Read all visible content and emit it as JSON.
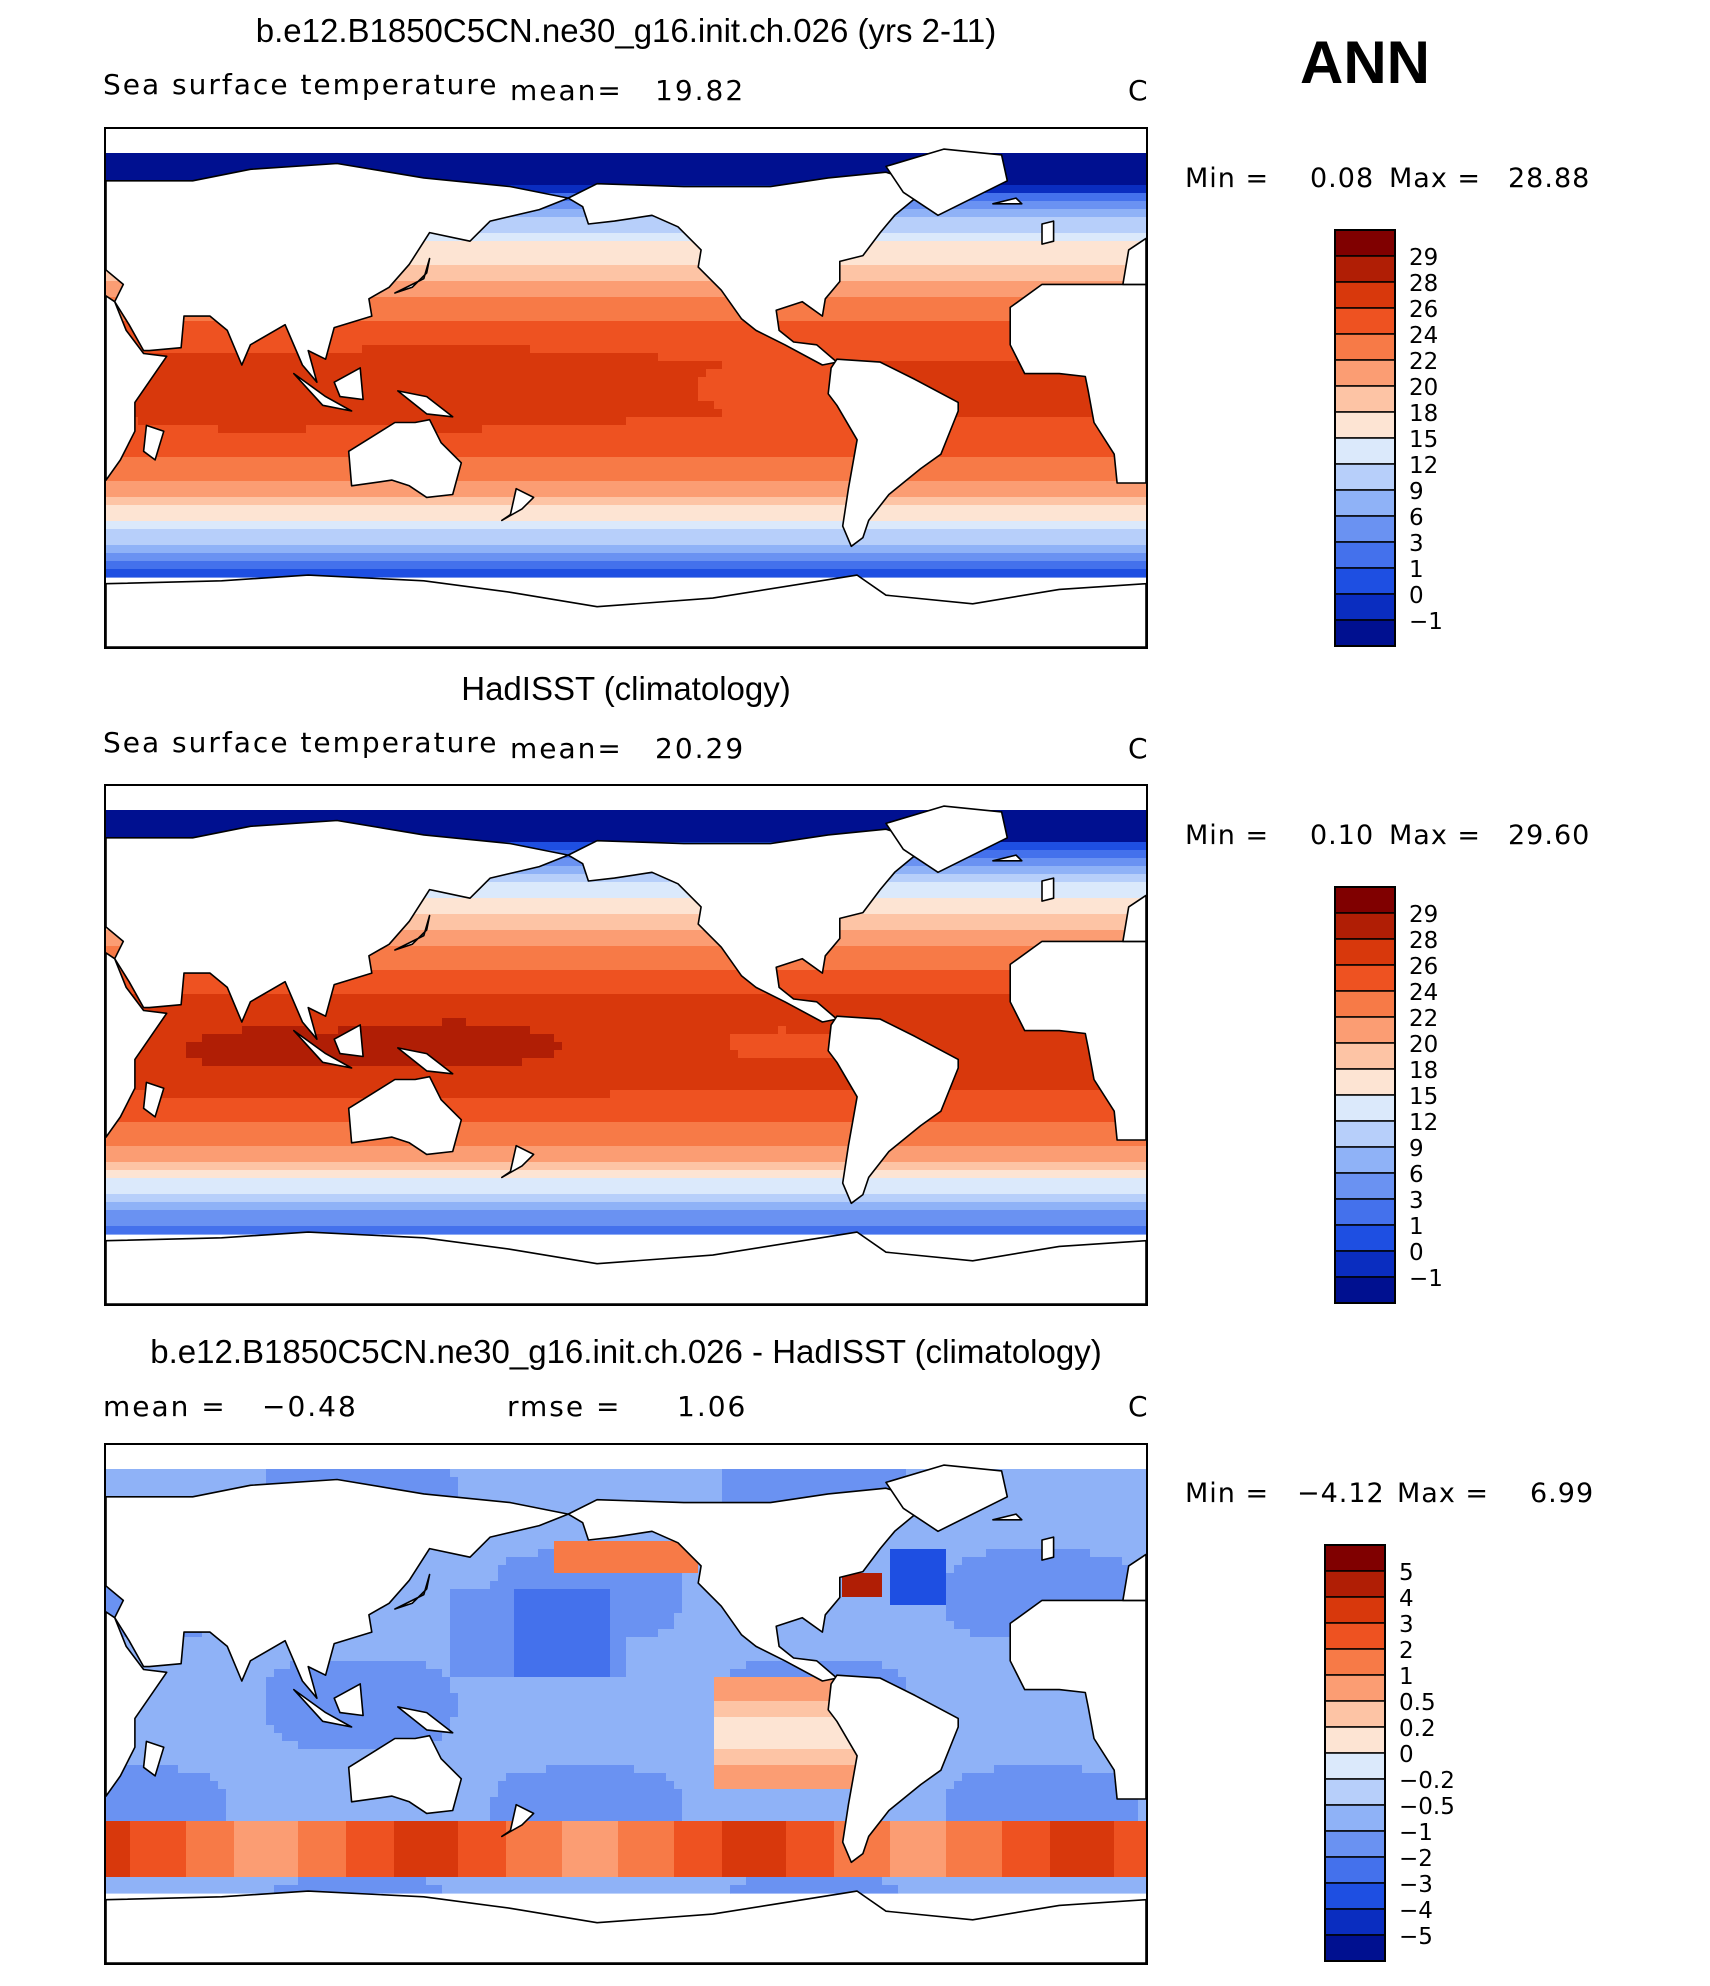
{
  "season": "ANN",
  "units": "C",
  "panels": [
    {
      "title": "b.e12.B1850C5CN.ne30_g16.init.ch.026 (yrs 2-11)",
      "variable": "Sea surface temperature",
      "mean_label": "mean=",
      "mean_value": "19.82",
      "units": "C",
      "minmax": {
        "min_label": "Min =",
        "min": "0.08",
        "max_label": "Max =",
        "max": "28.88"
      },
      "map": {
        "field": "sst",
        "bias": -0.5
      }
    },
    {
      "title": "HadISST (climatology)",
      "variable": "Sea surface temperature",
      "mean_label": "mean=",
      "mean_value": "20.29",
      "units": "C",
      "minmax": {
        "min_label": "Min =",
        "min": "0.10",
        "max_label": "Max =",
        "max": "29.60"
      },
      "map": {
        "field": "sst",
        "bias": 0.3
      }
    },
    {
      "title": "b.e12.B1850C5CN.ne30_g16.init.ch.026 - HadISST (climatology)",
      "mean_label": "mean =",
      "mean_value": "−0.48",
      "rmse_label": "rmse =",
      "rmse_value": "1.06",
      "units": "C",
      "minmax": {
        "min_label": "Min =",
        "min": "−4.12",
        "max_label": "Max =",
        "max": "6.99"
      },
      "map": {
        "field": "diff"
      }
    }
  ],
  "colorbars": {
    "sst": {
      "labels": [
        "29",
        "28",
        "26",
        "24",
        "22",
        "20",
        "18",
        "15",
        "12",
        "9",
        "6",
        "3",
        "1",
        "0",
        "−1"
      ],
      "colors": [
        "#800000",
        "#b01e05",
        "#d8380c",
        "#ee5221",
        "#f77a47",
        "#fb9d73",
        "#fdc4a5",
        "#fde4d3",
        "#dbe9fb",
        "#b7cffa",
        "#8fb2f7",
        "#6a92f2",
        "#4471ec",
        "#1e4fe2",
        "#0a2dc0",
        "#001090"
      ]
    },
    "diff": {
      "labels": [
        "5",
        "4",
        "3",
        "2",
        "1",
        "0.5",
        "0.2",
        "0",
        "−0.2",
        "−0.5",
        "−1",
        "−2",
        "−3",
        "−4",
        "−5"
      ],
      "colors": [
        "#800000",
        "#b01e05",
        "#d8380c",
        "#ee5221",
        "#f77a47",
        "#fb9d73",
        "#fdc4a5",
        "#fde4d3",
        "#dbe9fb",
        "#b7cffa",
        "#8fb2f7",
        "#6a92f2",
        "#4471ec",
        "#1e4fe2",
        "#0a2dc0",
        "#001090"
      ]
    }
  }
}
